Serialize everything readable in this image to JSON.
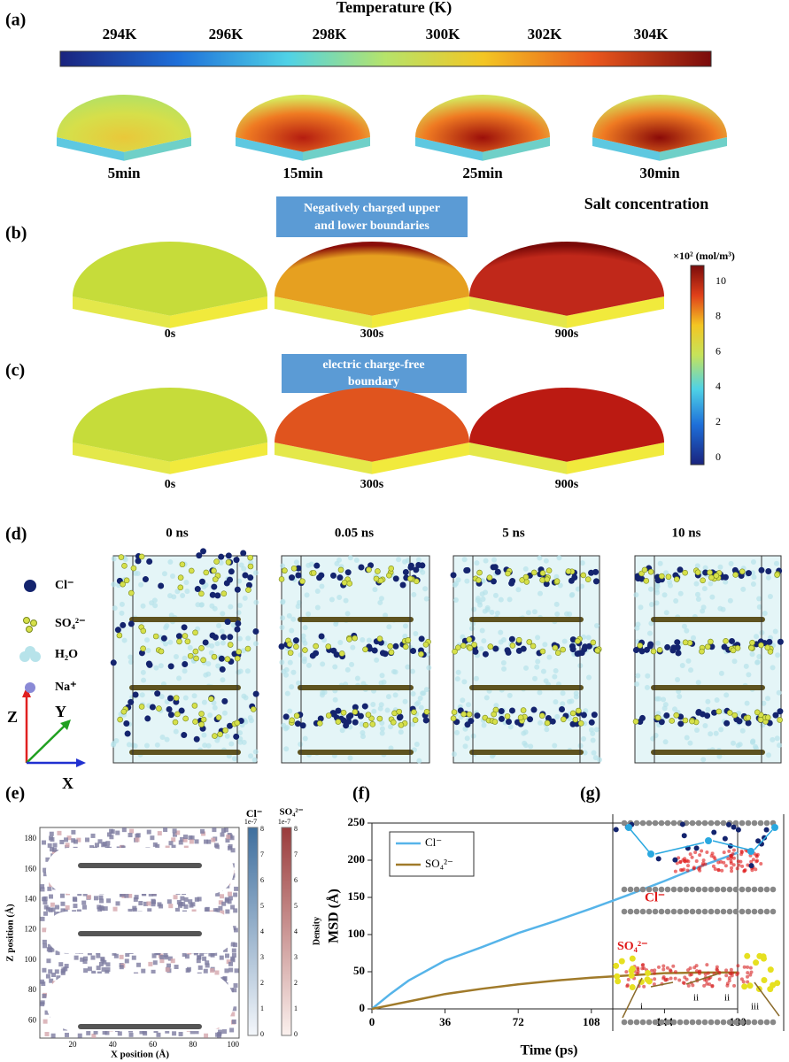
{
  "panel_a": {
    "label": "(a)",
    "colorbar_title": "Temperature (K)",
    "colorbar_ticks": [
      "294K",
      "296K",
      "298K",
      "300K",
      "302K",
      "304K"
    ],
    "times": [
      "5min",
      "15min",
      "25min",
      "30min"
    ]
  },
  "salt_colorbar": {
    "title": "Salt concentration",
    "unit": "×10² (mol/m³)",
    "ticks": [
      10,
      8,
      6,
      4,
      2,
      0
    ]
  },
  "panel_b": {
    "label": "(b)",
    "banner_lines": [
      "Negatively charged upper",
      "and lower boundaries"
    ],
    "times": [
      "0s",
      "300s",
      "900s"
    ]
  },
  "panel_c": {
    "label": "(c)",
    "banner_lines": [
      "electric charge-free",
      "boundary"
    ],
    "times": [
      "0s",
      "300s",
      "900s"
    ]
  },
  "panel_d": {
    "label": "(d)",
    "times": [
      "0 ns",
      "0.05 ns",
      "5 ns",
      "10 ns"
    ],
    "legend": [
      "Cl⁻",
      "SO₄²⁻",
      "H₂O",
      "Na⁺"
    ],
    "axes": [
      "Z",
      "Y",
      "X"
    ]
  },
  "panel_e": {
    "label": "(e)",
    "xlabel": "X position (Å)",
    "ylabel": "Z position (Å)",
    "xticks": [
      20,
      40,
      60,
      80,
      100
    ],
    "yticks": [
      180,
      160,
      140,
      120,
      100,
      80,
      60
    ],
    "colorbar_labels": [
      "Cl⁻",
      "SO₄²⁻"
    ],
    "colorbar_scale": "1e-7",
    "colorbar_ticks": [
      8,
      7,
      6,
      5,
      4,
      3,
      2,
      1,
      0
    ],
    "colorbar_title": "Density"
  },
  "panel_f": {
    "label": "(f)"
  },
  "chart_data": {
    "type": "line",
    "xlabel": "Time (ps)",
    "ylabel": "MSD (Å)",
    "x": [
      0,
      9,
      18,
      36,
      54,
      72,
      90,
      108,
      126,
      144,
      162,
      180
    ],
    "xlim": [
      0,
      180
    ],
    "xticks": [
      0,
      36,
      72,
      108,
      144,
      180
    ],
    "ylim": [
      0,
      250
    ],
    "yticks": [
      0,
      50,
      100,
      150,
      200,
      250
    ],
    "series": [
      {
        "name": "Cl⁻",
        "color": "#56b4e9",
        "values": [
          0,
          20,
          38,
          65,
          83,
          102,
          118,
          135,
          153,
          172,
          192,
          210
        ]
      },
      {
        "name": "SO₄²⁻",
        "color": "#a07a2a",
        "values": [
          0,
          5,
          10,
          20,
          27,
          33,
          38,
          42,
          45,
          48,
          49,
          49
        ]
      }
    ]
  },
  "panel_g": {
    "label": "(g)",
    "labels": [
      "Cl⁻",
      "SO₄²⁻"
    ],
    "steps": [
      "i",
      "ii",
      "ii",
      "iii"
    ]
  }
}
